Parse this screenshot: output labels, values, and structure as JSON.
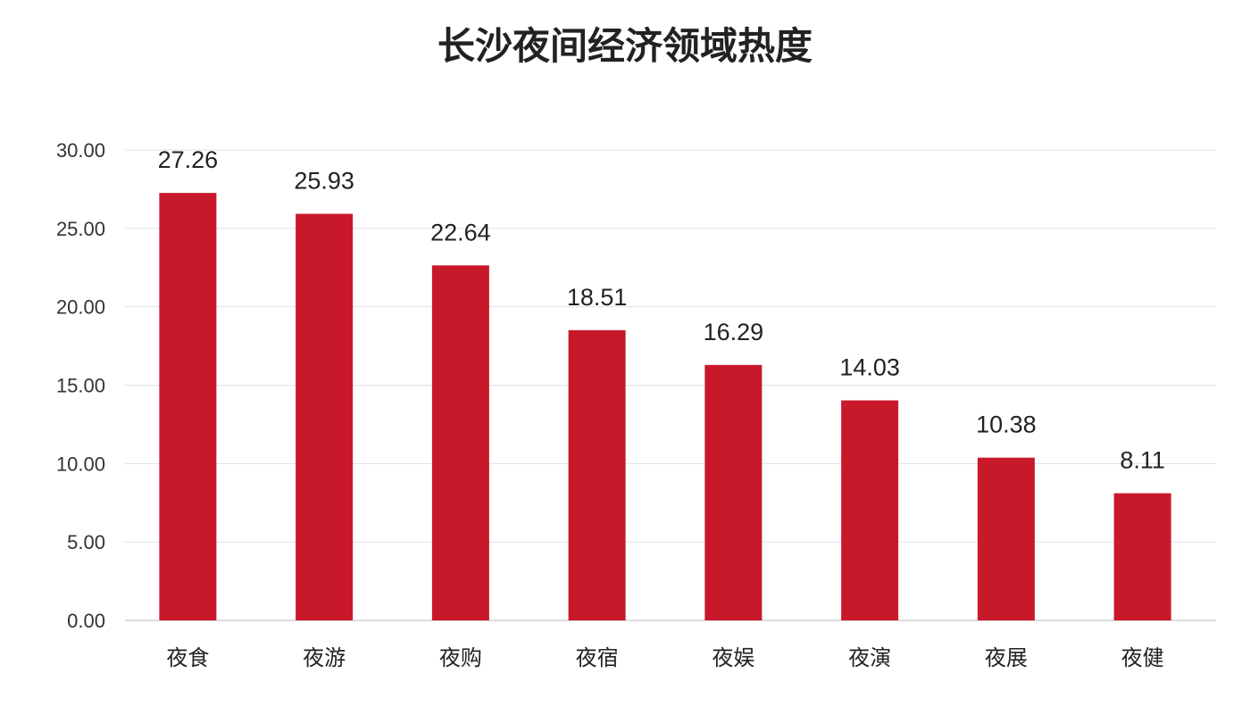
{
  "chart_data": {
    "type": "bar",
    "title": "长沙夜间经济领域热度",
    "categories": [
      "夜食",
      "夜游",
      "夜购",
      "夜宿",
      "夜娱",
      "夜演",
      "夜展",
      "夜健"
    ],
    "values": [
      27.26,
      25.93,
      22.64,
      18.51,
      16.29,
      14.03,
      10.38,
      8.11
    ],
    "data_labels": [
      "27.26",
      "25.93",
      "22.64",
      "18.51",
      "16.29",
      "14.03",
      "10.38",
      "8.11"
    ],
    "y_ticks": [
      "0.00",
      "5.00",
      "10.00",
      "15.00",
      "20.00",
      "25.00",
      "30.00"
    ],
    "xlabel": "",
    "ylabel": "",
    "ylim": [
      0,
      30
    ],
    "grid": true,
    "legend": "none",
    "bar_color": "#c8192b"
  }
}
